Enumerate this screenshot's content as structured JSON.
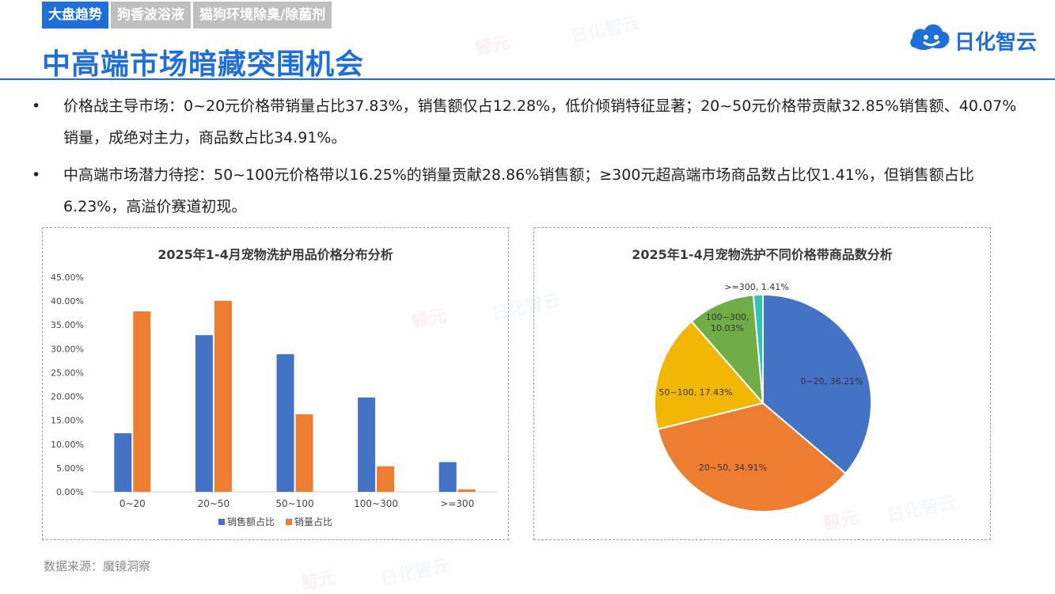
{
  "tabs": [
    {
      "label": "大盘趋势"
    },
    {
      "label": "狗香波浴液"
    },
    {
      "label": "猫狗环境除臭/除菌剂"
    }
  ],
  "page_title": "中高端市场暗藏突围机会",
  "brand": {
    "name": "日化智云",
    "icon": "cloud-face-icon",
    "color": "#1f6fd8"
  },
  "watermarks": {
    "a": "鲸元",
    "b": "日化智云"
  },
  "bullets": [
    {
      "text": "价格战主导市场：0~20元价格带销量占比37.83%，销售额仅占12.28%，低价倾销特征显著；20~50元价格带贡献32.85%销售额、40.07%销量，成绝对主力，商品数占比34.91%。"
    },
    {
      "text": "中高端市场潜力待挖：50~100元价格带以16.25%的销量贡献28.86%销售额；≥300元超高端市场商品数占比仅1.41%，但销售额占比6.23%，高溢价赛道初现。"
    }
  ],
  "source": "数据来源：魔镜洞察",
  "colors": {
    "accent": "#1f6fd8",
    "series_blue": "#4472c4",
    "series_orange": "#ed7d31",
    "yellow": "#f2b705",
    "green": "#70ad47",
    "teal": "#2ec4b6"
  },
  "chart_data": [
    {
      "type": "bar",
      "title": "2025年1-4月宠物洗护用品价格分布分析",
      "categories": [
        "0~20",
        "20~50",
        "50~100",
        "100~300",
        ">=300"
      ],
      "series": [
        {
          "name": "销售额占比",
          "values": [
            12.28,
            32.85,
            28.86,
            19.78,
            6.23
          ],
          "color": "#4472c4"
        },
        {
          "name": "销量占比",
          "values": [
            37.83,
            40.07,
            16.25,
            5.35,
            0.5
          ],
          "color": "#ed7d31"
        }
      ],
      "ylim": [
        0,
        45
      ],
      "yticks": [
        "0.00%",
        "5.00%",
        "10.00%",
        "15.00%",
        "20.00%",
        "25.00%",
        "30.00%",
        "35.00%",
        "40.00%",
        "45.00%"
      ],
      "ytick_values": [
        0,
        5,
        10,
        15,
        20,
        25,
        30,
        35,
        40,
        45
      ],
      "legend_position": "bottom",
      "grid": false
    },
    {
      "type": "pie",
      "title": "2025年1-4月宠物洗护不同价格带商品数分析",
      "slices": [
        {
          "label": "0~20, 36.21%",
          "value": 36.21,
          "color": "#4472c4"
        },
        {
          "label": "20~50, 34.91%",
          "value": 34.91,
          "color": "#ed7d31"
        },
        {
          "label": "50~100, 17.43%",
          "value": 17.43,
          "color": "#f2b705"
        },
        {
          "label": "100~300, 10.03%",
          "label_lines": [
            "100~300,",
            "10.03%"
          ],
          "value": 10.03,
          "color": "#70ad47"
        },
        {
          "label": ">=300, 1.41%",
          "value": 1.41,
          "color": "#2ec4b6"
        }
      ]
    }
  ]
}
